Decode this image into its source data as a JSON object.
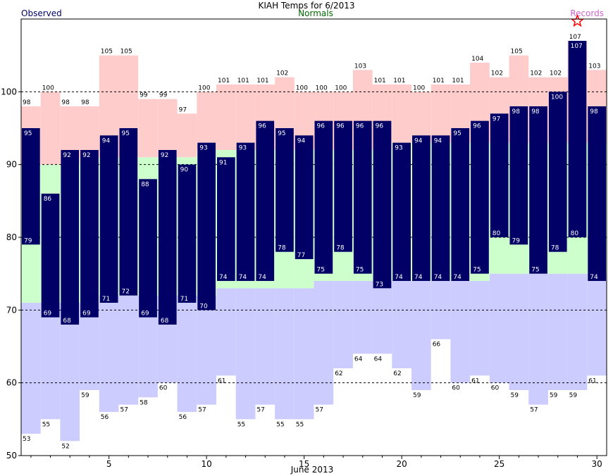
{
  "chart_data": {
    "type": "bar",
    "title": "KIAH Temps for 6/2013",
    "legend": {
      "observed": "Observed",
      "normals": "Normals",
      "records": "Records"
    },
    "xlabel": "June 2013",
    "xlim": [
      0.5,
      30.5
    ],
    "ylim": [
      50,
      110
    ],
    "x_ticks": [
      5,
      10,
      15,
      20,
      25,
      30
    ],
    "y_ticks": [
      50,
      60,
      70,
      80,
      90,
      100
    ],
    "grid_lines": [
      60,
      70,
      80,
      90,
      100
    ],
    "days": [
      1,
      2,
      3,
      4,
      5,
      6,
      7,
      8,
      9,
      10,
      11,
      12,
      13,
      14,
      15,
      16,
      17,
      18,
      19,
      20,
      21,
      22,
      23,
      24,
      25,
      26,
      27,
      28,
      29,
      30
    ],
    "observed_high": [
      95,
      86,
      92,
      92,
      94,
      95,
      88,
      92,
      90,
      93,
      91,
      93,
      96,
      95,
      94,
      96,
      96,
      96,
      96,
      93,
      94,
      94,
      95,
      96,
      97,
      98,
      98,
      100,
      107,
      98
    ],
    "observed_low": [
      79,
      69,
      68,
      69,
      71,
      72,
      69,
      68,
      71,
      70,
      74,
      74,
      74,
      78,
      77,
      75,
      78,
      75,
      73,
      74,
      74,
      74,
      74,
      75,
      80,
      79,
      75,
      78,
      80,
      74
    ],
    "normal_high": [
      90,
      90,
      90,
      91,
      91,
      91,
      91,
      91,
      91,
      92,
      92,
      92,
      92,
      92,
      92,
      92,
      92,
      92,
      92,
      93,
      93,
      93,
      93,
      93,
      93,
      93,
      93,
      93,
      93,
      93
    ],
    "normal_low": [
      71,
      71,
      71,
      71,
      72,
      72,
      72,
      72,
      72,
      72,
      73,
      73,
      73,
      73,
      73,
      74,
      74,
      74,
      74,
      74,
      74,
      74,
      74,
      74,
      75,
      75,
      75,
      75,
      75,
      75
    ],
    "record_high": [
      98,
      100,
      98,
      98,
      105,
      105,
      99,
      99,
      97,
      100,
      101,
      101,
      101,
      102,
      100,
      100,
      100,
      103,
      101,
      101,
      100,
      101,
      101,
      104,
      102,
      105,
      102,
      102,
      107,
      103
    ],
    "record_low": [
      53,
      55,
      52,
      59,
      56,
      57,
      58,
      60,
      56,
      57,
      61,
      55,
      57,
      55,
      55,
      57,
      62,
      64,
      64,
      62,
      59,
      66,
      60,
      61,
      60,
      59,
      57,
      59,
      59,
      61
    ],
    "record_marker_day": 29,
    "colors": {
      "observed": "#000066",
      "record_band": "#ffcccc",
      "normal_band": "#ccffcc",
      "low_band": "#ccccff",
      "title": "#000000",
      "observed_legend": "#000066",
      "normals_legend": "#006600",
      "records_legend": "#cc66cc",
      "star": "#ff0000"
    }
  }
}
